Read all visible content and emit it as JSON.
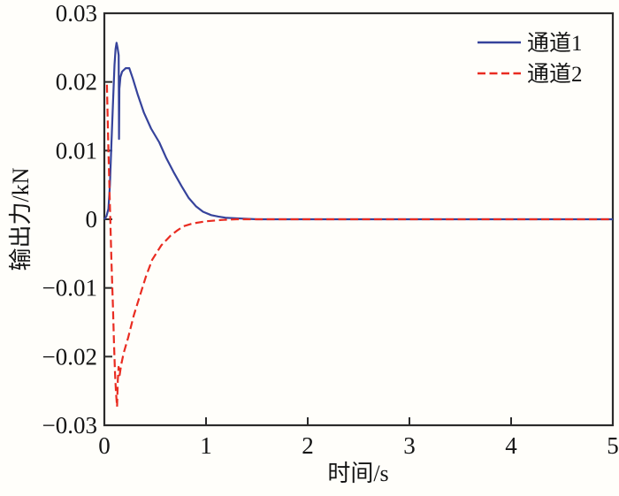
{
  "figure": {
    "background": "#fffefa",
    "frame_color": "#2b2b2b",
    "text_color": "#141414"
  },
  "chart_data": {
    "type": "line",
    "title": "",
    "xlabel": "时间/s",
    "ylabel": "输出力/kN",
    "xlim": [
      0,
      5
    ],
    "ylim": [
      -0.03,
      0.03
    ],
    "grid": false,
    "legend_position": "top-right",
    "xticks": [
      {
        "v": 0,
        "label": "0"
      },
      {
        "v": 1,
        "label": "1"
      },
      {
        "v": 2,
        "label": "2"
      },
      {
        "v": 3,
        "label": "3"
      },
      {
        "v": 4,
        "label": "4"
      },
      {
        "v": 5,
        "label": "5"
      }
    ],
    "yticks": [
      {
        "v": 0.03,
        "label": "0.03"
      },
      {
        "v": 0.02,
        "label": "0.02"
      },
      {
        "v": 0.01,
        "label": "0.01"
      },
      {
        "v": 0,
        "label": "0"
      },
      {
        "v": -0.01,
        "label": "−0.01"
      },
      {
        "v": -0.02,
        "label": "−0.02"
      },
      {
        "v": -0.03,
        "label": "−0.03"
      }
    ],
    "series": [
      {
        "name": "通道1",
        "color": "#36439b",
        "style": "solid",
        "points": [
          [
            0,
            0
          ],
          [
            0.02,
            0.0004
          ],
          [
            0.04,
            0.0015
          ],
          [
            0.055,
            0.005
          ],
          [
            0.07,
            0.011
          ],
          [
            0.085,
            0.017
          ],
          [
            0.1,
            0.0225
          ],
          [
            0.11,
            0.0248
          ],
          [
            0.12,
            0.0257
          ],
          [
            0.13,
            0.025
          ],
          [
            0.141,
            0.0239
          ],
          [
            0.144,
            0.0117
          ],
          [
            0.148,
            0.019
          ],
          [
            0.158,
            0.0207
          ],
          [
            0.175,
            0.0215
          ],
          [
            0.21,
            0.022
          ],
          [
            0.245,
            0.022
          ],
          [
            0.28,
            0.0205
          ],
          [
            0.33,
            0.0181
          ],
          [
            0.39,
            0.0155
          ],
          [
            0.46,
            0.0132
          ],
          [
            0.54,
            0.0112
          ],
          [
            0.61,
            0.0089
          ],
          [
            0.68,
            0.0069
          ],
          [
            0.76,
            0.0048
          ],
          [
            0.83,
            0.0031
          ],
          [
            0.9,
            0.0019
          ],
          [
            0.97,
            0.0011
          ],
          [
            1.05,
            0.0006
          ],
          [
            1.12,
            0.0004
          ],
          [
            1.2,
            0.0002
          ],
          [
            1.35,
            0.0001
          ],
          [
            1.5,
            0
          ],
          [
            2.0,
            0
          ],
          [
            2.5,
            0
          ],
          [
            3.0,
            0
          ],
          [
            3.5,
            0
          ],
          [
            4.0,
            0
          ],
          [
            4.5,
            0
          ],
          [
            5.0,
            0
          ]
        ]
      },
      {
        "name": "通道2",
        "color": "#e92c21",
        "style": "dashed",
        "dash": [
          9,
          4.5
        ],
        "points": [
          [
            0.025,
            0.0196
          ],
          [
            0.04,
            0.01
          ],
          [
            0.055,
            0.002
          ],
          [
            0.07,
            -0.006
          ],
          [
            0.085,
            -0.013
          ],
          [
            0.095,
            -0.018
          ],
          [
            0.105,
            -0.0225
          ],
          [
            0.115,
            -0.0253
          ],
          [
            0.125,
            -0.0273
          ],
          [
            0.132,
            -0.0235
          ],
          [
            0.14,
            -0.0215
          ],
          [
            0.15,
            -0.0227
          ],
          [
            0.165,
            -0.0212
          ],
          [
            0.19,
            -0.0195
          ],
          [
            0.235,
            -0.0172
          ],
          [
            0.29,
            -0.014
          ],
          [
            0.35,
            -0.0111
          ],
          [
            0.41,
            -0.0083
          ],
          [
            0.47,
            -0.0059
          ],
          [
            0.56,
            -0.0038
          ],
          [
            0.65,
            -0.0024
          ],
          [
            0.72,
            -0.0016
          ],
          [
            0.78,
            -0.001
          ],
          [
            0.87,
            -0.0006
          ],
          [
            1.0,
            -0.0003
          ],
          [
            1.15,
            -0.0001
          ],
          [
            1.3,
            0
          ],
          [
            1.5,
            0
          ],
          [
            2.0,
            0
          ],
          [
            2.5,
            0
          ],
          [
            3.0,
            0
          ],
          [
            3.5,
            0
          ],
          [
            4.0,
            0
          ],
          [
            4.5,
            0
          ],
          [
            5.0,
            0
          ]
        ]
      }
    ]
  }
}
